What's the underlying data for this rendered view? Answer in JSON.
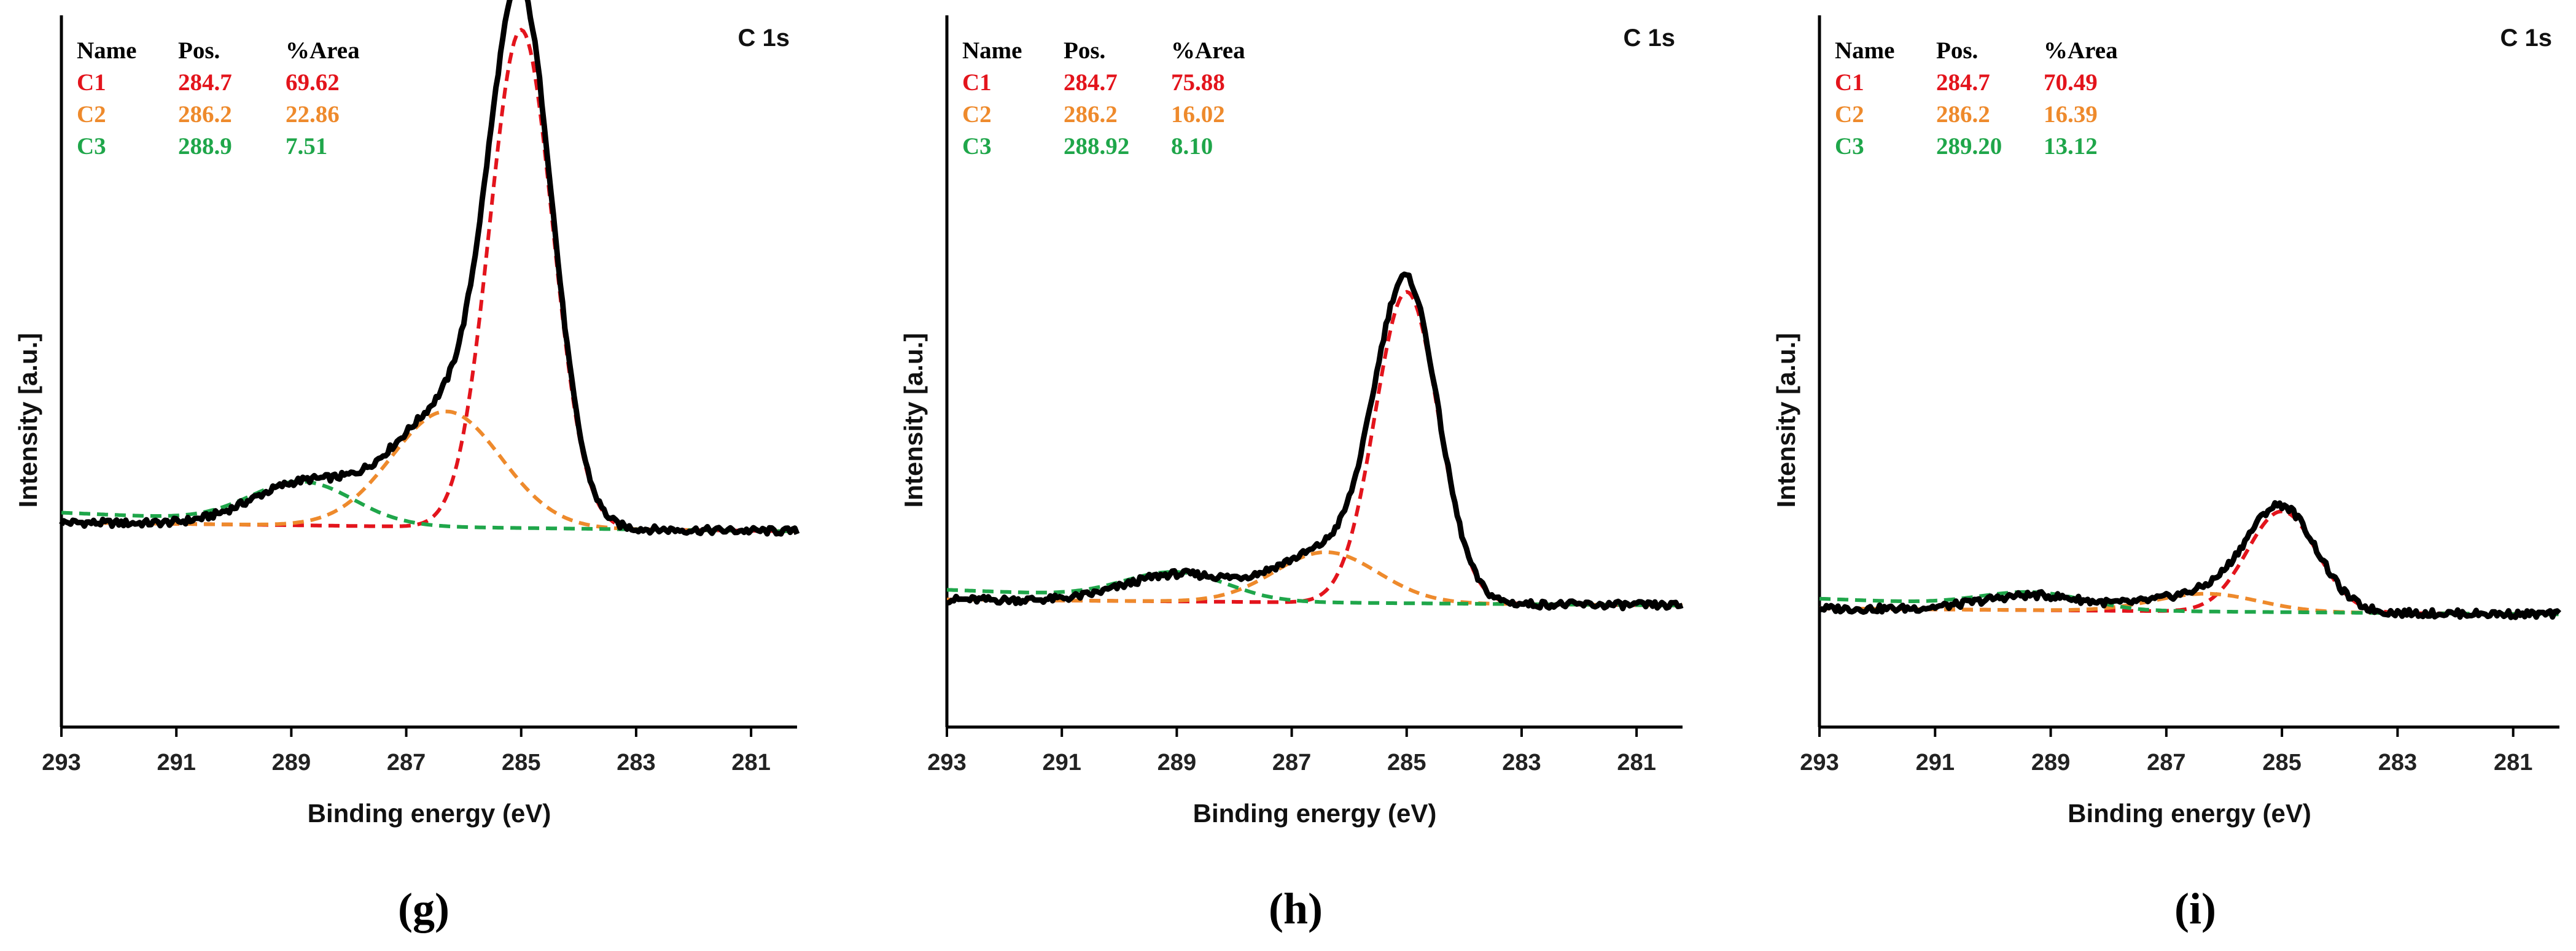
{
  "figure": {
    "panels": [
      "g",
      "h",
      "i"
    ]
  },
  "chart_data": [
    {
      "type": "line",
      "panel_label": "(g)",
      "title": "C 1s",
      "xlabel": "Binding energy (eV)",
      "ylabel": "Intensity [a.u.]",
      "xlim": [
        293,
        280.2
      ],
      "x_reversed": true,
      "xticks": [
        "293",
        "291",
        "289",
        "287",
        "285",
        "283",
        "281"
      ],
      "grid": false,
      "legend": {
        "headers": [
          "Name",
          "Pos.",
          "%Area"
        ],
        "rows": [
          {
            "name": "C1",
            "pos": "284.7",
            "area": "69.62",
            "color": "#e3141c"
          },
          {
            "name": "C2",
            "pos": "286.2",
            "area": "22.86",
            "color": "#ee8a2c"
          },
          {
            "name": "C3",
            "pos": "288.9",
            "area": "7.51",
            "color": "#1fa64a"
          }
        ]
      },
      "series": [
        {
          "name": "C1",
          "color": "#e3141c",
          "center": 285.0,
          "amp": 0.84,
          "sigma": 0.55
        },
        {
          "name": "C2",
          "color": "#ee8a2c",
          "center": 286.3,
          "amp": 0.195,
          "sigma": 0.95
        },
        {
          "name": "C3",
          "color": "#1fa64a",
          "center": 288.8,
          "amp": 0.07,
          "sigma": 0.9
        }
      ],
      "baseline": {
        "left": 0.345,
        "right": 0.33
      },
      "ylim": [
        0.0,
        1.2
      ]
    },
    {
      "type": "line",
      "panel_label": "(h)",
      "title": "C 1s",
      "xlabel": "Binding energy (eV)",
      "ylabel": "Intensity [a.u.]",
      "xlim": [
        293,
        280.2
      ],
      "x_reversed": true,
      "xticks": [
        "293",
        "291",
        "289",
        "287",
        "285",
        "283",
        "281"
      ],
      "grid": false,
      "legend": {
        "headers": [
          "Name",
          "Pos.",
          "%Area"
        ],
        "rows": [
          {
            "name": "C1",
            "pos": "284.7",
            "area": "75.88",
            "color": "#e3141c"
          },
          {
            "name": "C2",
            "pos": "286.2",
            "area": "16.02",
            "color": "#ee8a2c"
          },
          {
            "name": "C3",
            "pos": "288.92",
            "area": "8.10",
            "color": "#1fa64a"
          }
        ]
      },
      "series": [
        {
          "name": "C1",
          "color": "#e3141c",
          "center": 285.0,
          "amp": 0.525,
          "sigma": 0.55
        },
        {
          "name": "C2",
          "color": "#ee8a2c",
          "center": 286.4,
          "amp": 0.085,
          "sigma": 0.9
        },
        {
          "name": "C3",
          "color": "#1fa64a",
          "center": 289.0,
          "amp": 0.045,
          "sigma": 0.9
        }
      ],
      "baseline": {
        "left": 0.215,
        "right": 0.205
      },
      "ylim": [
        0.0,
        1.2
      ]
    },
    {
      "type": "line",
      "panel_label": "(i)",
      "title": "C 1s",
      "xlabel": "Binding energy (eV)",
      "ylabel": "Intensity [a.u.]",
      "xlim": [
        293,
        280.2
      ],
      "x_reversed": true,
      "xticks": [
        "293",
        "291",
        "289",
        "287",
        "285",
        "283",
        "281"
      ],
      "grid": false,
      "legend": {
        "headers": [
          "Name",
          "Pos.",
          "%Area"
        ],
        "rows": [
          {
            "name": "C1",
            "pos": "284.7",
            "area": "70.49",
            "color": "#e3141c"
          },
          {
            "name": "C2",
            "pos": "286.2",
            "area": "16.39",
            "color": "#ee8a2c"
          },
          {
            "name": "C3",
            "pos": "289.20",
            "area": "13.12",
            "color": "#1fa64a"
          }
        ]
      },
      "series": [
        {
          "name": "C1",
          "color": "#e3141c",
          "center": 285.0,
          "amp": 0.17,
          "sigma": 0.6
        },
        {
          "name": "C2",
          "color": "#ee8a2c",
          "center": 286.3,
          "amp": 0.03,
          "sigma": 0.9
        },
        {
          "name": "C3",
          "color": "#1fa64a",
          "center": 289.3,
          "amp": 0.025,
          "sigma": 0.9
        }
      ],
      "baseline": {
        "left": 0.2,
        "right": 0.19
      },
      "ylim": [
        0.0,
        1.2
      ]
    }
  ]
}
